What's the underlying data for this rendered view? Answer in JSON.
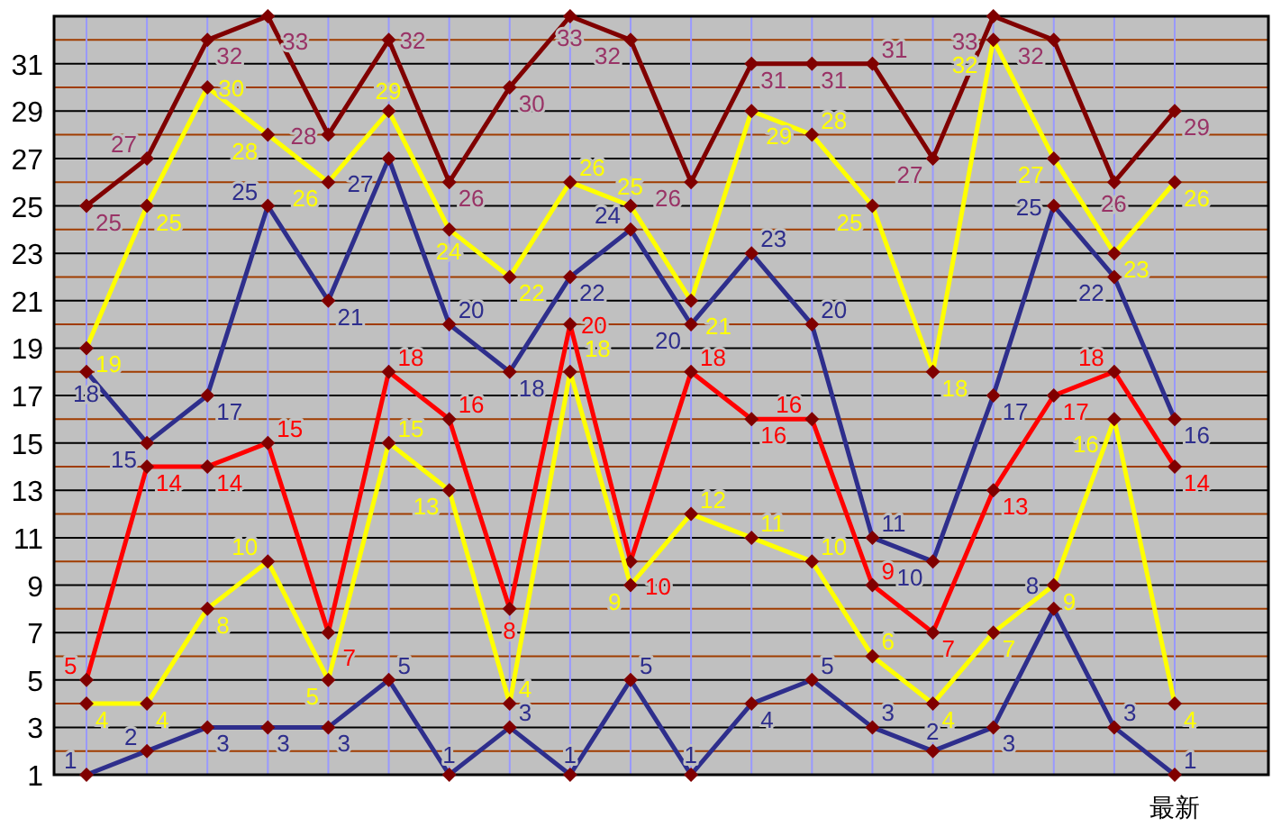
{
  "chart_data": {
    "type": "line",
    "categories": [
      null,
      null,
      null,
      null,
      null,
      null,
      null,
      null,
      null,
      null,
      null,
      null,
      null,
      null,
      null,
      null,
      null,
      null,
      "最新"
    ],
    "series": [
      {
        "color": "#800000",
        "values": [
          25,
          27,
          32,
          33,
          28,
          32,
          26,
          30,
          33,
          32,
          26,
          31,
          31,
          31,
          27,
          33,
          32,
          26,
          29
        ]
      },
      {
        "color": "#ffff00",
        "values": [
          19,
          25,
          30,
          28,
          26,
          29,
          24,
          22,
          26,
          25,
          21,
          29,
          28,
          25,
          18,
          32,
          27,
          23,
          26
        ]
      },
      {
        "color": "#2e2e8c",
        "values": [
          18,
          15,
          17,
          25,
          21,
          27,
          20,
          18,
          22,
          24,
          20,
          23,
          20,
          11,
          10,
          17,
          25,
          22,
          16
        ]
      },
      {
        "color": "#ff0000",
        "values": [
          5,
          14,
          14,
          15,
          7,
          18,
          16,
          8,
          20,
          10,
          18,
          16,
          16,
          9,
          7,
          13,
          17,
          18,
          14
        ]
      },
      {
        "color": "#ffff00",
        "values": [
          4,
          4,
          8,
          10,
          5,
          15,
          13,
          4,
          18,
          9,
          12,
          11,
          10,
          6,
          4,
          7,
          9,
          16,
          4
        ]
      },
      {
        "color": "#2e2e8c",
        "values": [
          1,
          2,
          3,
          3,
          3,
          5,
          1,
          3,
          1,
          5,
          1,
          4,
          5,
          3,
          2,
          3,
          8,
          3,
          1
        ]
      }
    ],
    "ylim": [
      1,
      33
    ],
    "yticks": [
      1,
      {
        "value": 2,
        "label": null
      },
      3,
      {
        "value": 4,
        "label": null
      },
      5,
      {
        "value": 6,
        "label": null
      },
      7,
      {
        "value": 8,
        "label": null
      },
      9,
      {
        "value": 10,
        "label": null
      },
      11,
      {
        "value": 12,
        "label": null
      },
      13,
      {
        "value": 14,
        "label": null
      },
      15,
      {
        "value": 16,
        "label": null
      },
      17,
      {
        "value": 18,
        "label": null
      },
      19,
      {
        "value": 20,
        "label": null
      },
      21,
      {
        "value": 22,
        "label": null
      },
      23,
      {
        "value": 24,
        "label": null
      },
      25,
      {
        "value": 26,
        "label": null
      },
      27,
      {
        "value": 28,
        "label": null
      },
      29,
      {
        "value": 30,
        "label": null
      },
      31,
      {
        "value": 32,
        "label": null
      }
    ],
    "grid": true,
    "marker": "diamond",
    "data_labels": true
  }
}
